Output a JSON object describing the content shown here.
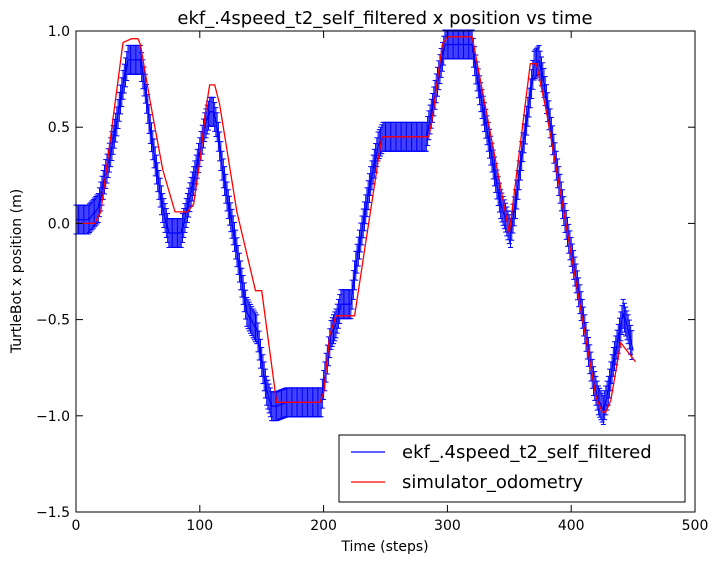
{
  "chart_data": {
    "type": "line",
    "title": "ekf_.4speed_t2_self_filtered x position vs time",
    "xlabel": "Time (steps)",
    "ylabel": "TurtleBot x position (m)",
    "xlim": [
      0,
      500
    ],
    "ylim": [
      -1.5,
      1.0
    ],
    "xticks": [
      "0",
      "100",
      "200",
      "300",
      "400",
      "500"
    ],
    "yticks": [
      "1.0",
      "0.5",
      "0.0",
      "−0.5",
      "−1.0",
      "−1.5"
    ],
    "grid": false,
    "legend_position": "lower-right",
    "series": [
      {
        "name": "ekf_.4speed_t2_self_filtered",
        "color": "#0000ff",
        "error_bars": true,
        "error_half_width": 0.075,
        "x": [
          0,
          10,
          18,
          22,
          28,
          33,
          38,
          42,
          48,
          52,
          56,
          60,
          65,
          70,
          75,
          80,
          85,
          90,
          95,
          100,
          104,
          108,
          111,
          114,
          118,
          123,
          128,
          133,
          138,
          143,
          146,
          150,
          154,
          158,
          162,
          170,
          180,
          190,
          198,
          202,
          206,
          210,
          214,
          218,
          222,
          226,
          232,
          238,
          244,
          248,
          255,
          265,
          275,
          283,
          288,
          293,
          298,
          303,
          310,
          320,
          323,
          328,
          333,
          338,
          343,
          347,
          351,
          355,
          360,
          365,
          370,
          374,
          378,
          383,
          388,
          393,
          398,
          403,
          408,
          413,
          418,
          422,
          426,
          430,
          434,
          438,
          442,
          446,
          450
        ],
        "y": [
          0.02,
          0.02,
          0.08,
          0.2,
          0.37,
          0.53,
          0.72,
          0.85,
          0.85,
          0.85,
          0.7,
          0.49,
          0.28,
          0.08,
          -0.05,
          -0.05,
          -0.05,
          0.08,
          0.22,
          0.37,
          0.5,
          0.58,
          0.58,
          0.5,
          0.3,
          0.1,
          -0.07,
          -0.27,
          -0.46,
          -0.52,
          -0.55,
          -0.72,
          -0.87,
          -0.95,
          -0.95,
          -0.93,
          -0.93,
          -0.93,
          -0.93,
          -0.75,
          -0.58,
          -0.52,
          -0.42,
          -0.42,
          -0.42,
          -0.22,
          0.0,
          0.22,
          0.4,
          0.45,
          0.45,
          0.45,
          0.45,
          0.45,
          0.6,
          0.77,
          0.93,
          0.93,
          0.93,
          0.93,
          0.8,
          0.62,
          0.45,
          0.27,
          0.1,
          0.03,
          -0.05,
          0.1,
          0.35,
          0.58,
          0.82,
          0.85,
          0.73,
          0.52,
          0.3,
          0.1,
          -0.08,
          -0.25,
          -0.43,
          -0.63,
          -0.82,
          -0.92,
          -0.97,
          -0.87,
          -0.72,
          -0.6,
          -0.47,
          -0.55,
          -0.66
        ]
      },
      {
        "name": "simulator_odometry",
        "color": "#ff0000",
        "error_bars": false,
        "x": [
          0,
          15,
          20,
          38,
          45,
          50,
          52,
          60,
          70,
          80,
          90,
          95,
          100,
          105,
          108,
          112,
          116,
          130,
          145,
          150,
          162,
          197,
          200,
          205,
          210,
          225,
          247,
          285,
          288,
          292,
          296,
          300,
          303,
          320,
          350,
          367,
          372,
          380,
          420,
          425,
          428,
          432,
          440,
          452
        ],
        "y": [
          0.0,
          0.0,
          0.06,
          0.94,
          0.96,
          0.96,
          0.93,
          0.63,
          0.28,
          0.06,
          0.06,
          0.1,
          0.32,
          0.6,
          0.72,
          0.72,
          0.62,
          0.06,
          -0.35,
          -0.35,
          -0.93,
          -0.93,
          -0.88,
          -0.58,
          -0.48,
          -0.48,
          0.45,
          0.45,
          0.55,
          0.75,
          0.93,
          0.97,
          0.97,
          0.97,
          -0.05,
          0.83,
          0.83,
          0.58,
          -0.9,
          -0.98,
          -0.98,
          -0.92,
          -0.62,
          -0.72
        ]
      }
    ]
  }
}
